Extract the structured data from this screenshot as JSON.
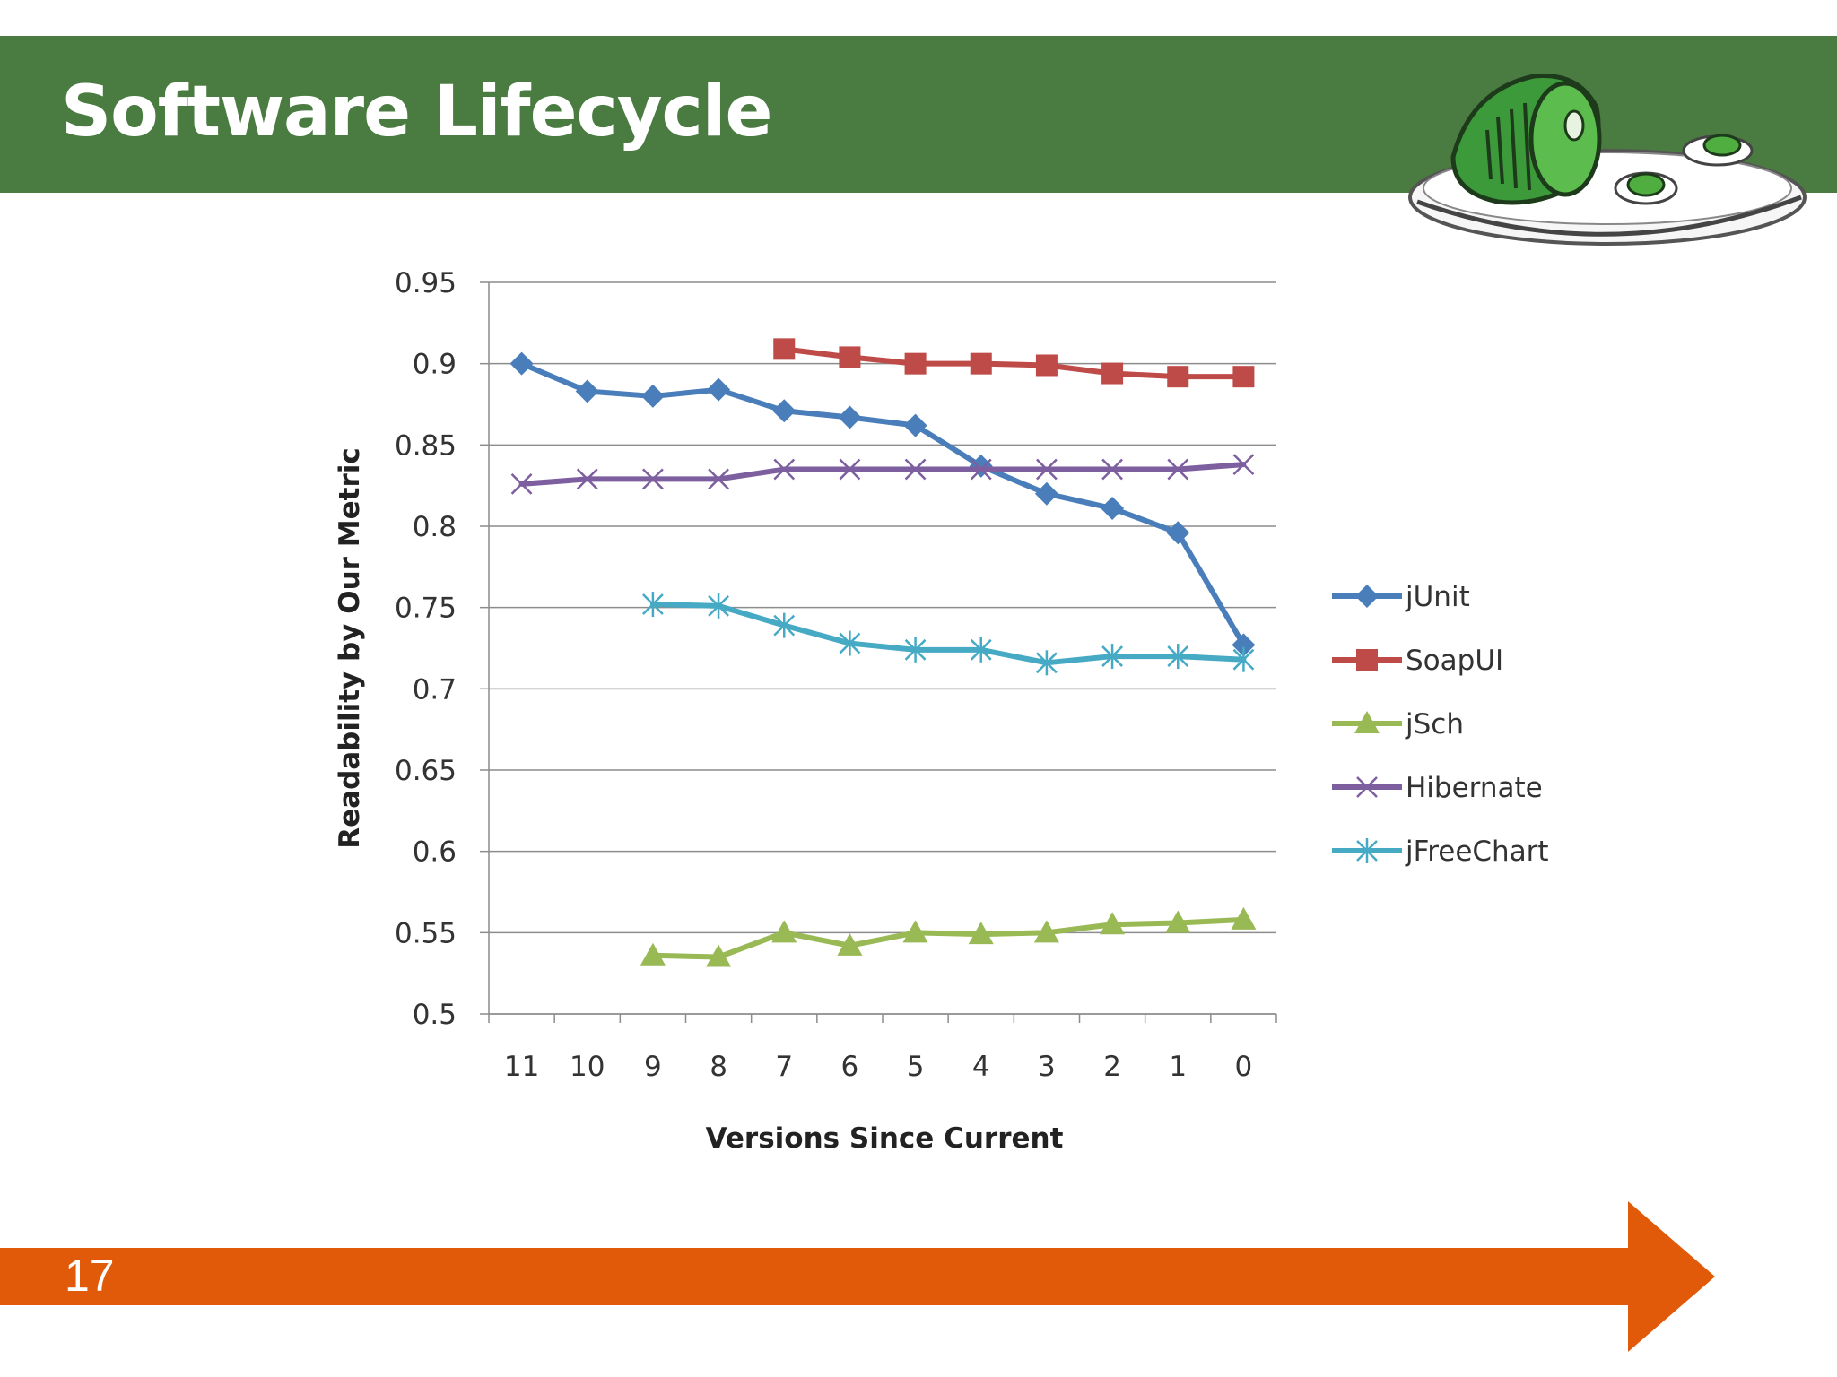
{
  "slide": {
    "title": "Software Lifecycle",
    "page_number": "17",
    "banner_color": "#4a7b41",
    "arrow_color": "#e05a0a",
    "logo_icon": "green-eggs-and-ham-plate-icon"
  },
  "chart_data": {
    "type": "line",
    "title": "",
    "xlabel": "Versions Since Current",
    "ylabel": "Readability by Our Metric",
    "categories": [
      "11",
      "10",
      "9",
      "8",
      "7",
      "6",
      "5",
      "4",
      "3",
      "2",
      "1",
      "0"
    ],
    "ylim": [
      0.5,
      0.95
    ],
    "yticks": [
      "0.95",
      "0.9",
      "0.85",
      "0.8",
      "0.75",
      "0.7",
      "0.65",
      "0.6",
      "0.55",
      "0.5"
    ],
    "grid": true,
    "legend_position": "right",
    "series": [
      {
        "name": "jUnit",
        "color": "#4a7ebb",
        "marker": "diamond",
        "values": [
          0.9,
          0.883,
          0.88,
          0.884,
          0.871,
          0.867,
          0.862,
          0.837,
          0.82,
          0.811,
          0.796,
          0.727
        ]
      },
      {
        "name": "SoapUI",
        "color": "#be4b48",
        "marker": "square",
        "values": [
          null,
          null,
          null,
          null,
          0.909,
          0.904,
          0.9,
          0.9,
          0.899,
          0.894,
          0.892,
          0.892
        ]
      },
      {
        "name": "jSch",
        "color": "#98b954",
        "marker": "triangle",
        "values": [
          null,
          null,
          0.536,
          0.535,
          0.55,
          0.542,
          0.55,
          0.549,
          0.55,
          0.555,
          0.556,
          0.558
        ]
      },
      {
        "name": "Hibernate",
        "color": "#7d5fa0",
        "marker": "x",
        "values": [
          0.826,
          0.829,
          0.829,
          0.829,
          0.835,
          0.835,
          0.835,
          0.835,
          0.835,
          0.835,
          0.835,
          0.838
        ]
      },
      {
        "name": "jFreeChart",
        "color": "#46aac5",
        "marker": "star",
        "values": [
          null,
          null,
          0.752,
          0.751,
          0.739,
          0.728,
          0.724,
          0.724,
          0.716,
          0.72,
          0.72,
          0.718
        ]
      }
    ]
  }
}
